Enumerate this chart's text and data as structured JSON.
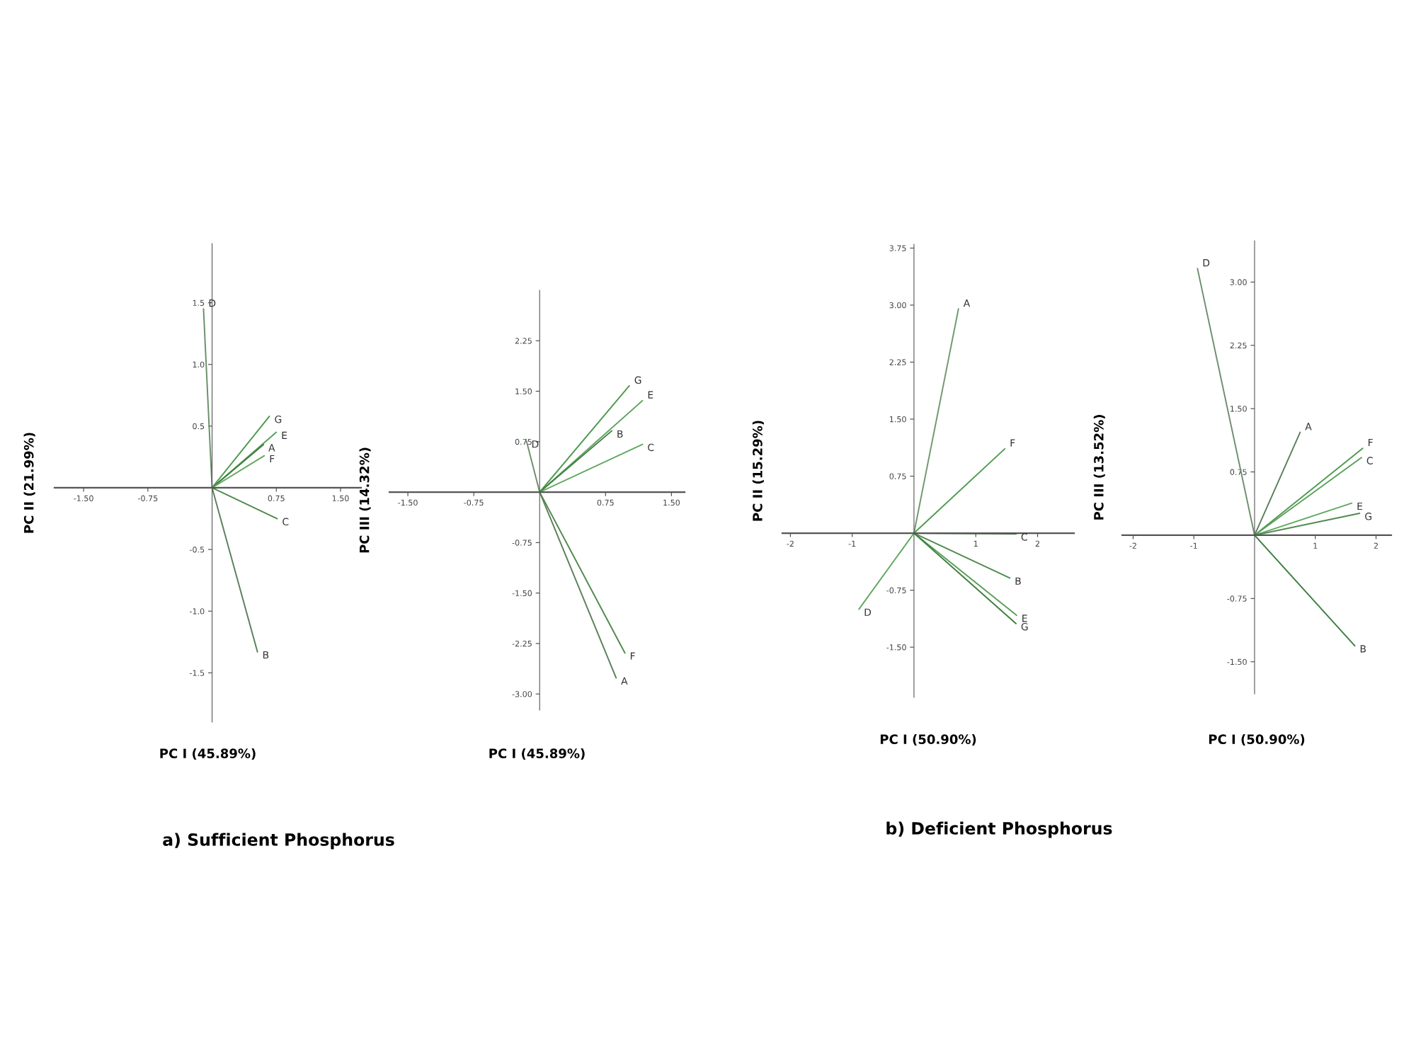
{
  "chart_data": [
    {
      "type": "line",
      "xlabel": "PC I (45.89%)",
      "ylabel": "PC II (21.99%)",
      "annotations": [
        "a) Sufficient Phosphorus"
      ],
      "marker": "none",
      "line_style": "solid",
      "grid": false,
      "legend": false,
      "xlim": [
        -1.84,
        1.74
      ],
      "ylim": [
        -1.9,
        1.98
      ],
      "xticks": [
        {
          "value": -1.5,
          "label": "-1.50"
        },
        {
          "value": -0.75,
          "label": "-0.75"
        },
        {
          "value": 0.75,
          "label": "0.75"
        },
        {
          "value": 1.5,
          "label": "1.50"
        }
      ],
      "yticks": [
        {
          "value": 0.5,
          "label": "0.5"
        },
        {
          "value": 1.0,
          "label": "1.0"
        },
        {
          "value": 1.5,
          "label": "1.5"
        },
        {
          "value": -0.5,
          "label": "-0.5"
        },
        {
          "value": -1.0,
          "label": "-1.0"
        },
        {
          "value": -1.5,
          "label": "-1.5"
        }
      ],
      "series": [
        {
          "name": "D",
          "color": "#6a8f6a",
          "x": [
            0,
            -0.1
          ],
          "values": [
            0,
            1.45
          ]
        },
        {
          "name": "G",
          "color": "#4f9a4f",
          "x": [
            0,
            0.67
          ],
          "values": [
            0,
            0.58
          ]
        },
        {
          "name": "E",
          "color": "#5a9e5a",
          "x": [
            0,
            0.75
          ],
          "values": [
            0,
            0.45
          ]
        },
        {
          "name": "A",
          "color": "#3f7f3f",
          "x": [
            0,
            0.6
          ],
          "values": [
            0,
            0.35
          ]
        },
        {
          "name": "F",
          "color": "#60a860",
          "x": [
            0,
            0.61
          ],
          "values": [
            0,
            0.26
          ]
        },
        {
          "name": "C",
          "color": "#4f8a4f",
          "x": [
            0,
            0.76
          ],
          "values": [
            0,
            -0.25
          ]
        },
        {
          "name": "B",
          "color": "#5c7f5c",
          "x": [
            0,
            0.53
          ],
          "values": [
            0,
            -1.33
          ]
        }
      ]
    },
    {
      "type": "line",
      "xlabel": "PC I (45.89%)",
      "ylabel": "PC III (14.32%)",
      "marker": "none",
      "line_style": "solid",
      "grid": false,
      "legend": false,
      "xlim": [
        -1.71,
        1.65
      ],
      "ylim": [
        -3.24,
        3.0
      ],
      "xticks": [
        {
          "value": -1.5,
          "label": "-1.50"
        },
        {
          "value": -0.75,
          "label": "-0.75"
        },
        {
          "value": 0.75,
          "label": "0.75"
        },
        {
          "value": 1.5,
          "label": "1.50"
        }
      ],
      "yticks": [
        2.25,
        {
          "value": 1.5,
          "label": "1.50"
        },
        0.75,
        -0.75,
        {
          "value": -1.5,
          "label": "-1.50"
        },
        -2.25,
        {
          "value": -3.0,
          "label": "-3.00"
        }
      ],
      "series": [
        {
          "name": "G",
          "color": "#4f9a4f",
          "x": [
            0,
            1.02
          ],
          "values": [
            0,
            1.58
          ]
        },
        {
          "name": "E",
          "color": "#5a9e5a",
          "x": [
            0,
            1.17
          ],
          "values": [
            0,
            1.36
          ]
        },
        {
          "name": "B",
          "color": "#3f7f3f",
          "x": [
            0,
            0.82
          ],
          "values": [
            0,
            0.91
          ]
        },
        {
          "name": "C",
          "color": "#60a860",
          "x": [
            0,
            1.17
          ],
          "values": [
            0,
            0.71
          ]
        },
        {
          "name": "D",
          "color": "#6a8f6a",
          "x": [
            0,
            -0.15
          ],
          "values": [
            0,
            0.76
          ]
        },
        {
          "name": "F",
          "color": "#4f8a4f",
          "x": [
            0,
            0.97
          ],
          "values": [
            0,
            -2.39
          ]
        },
        {
          "name": "A",
          "color": "#5c7f5c",
          "x": [
            0,
            0.87
          ],
          "values": [
            0,
            -2.76
          ]
        }
      ]
    },
    {
      "type": "line",
      "xlabel": "PC I (50.90%)",
      "ylabel": "PC II (15.29%)",
      "annotations": [
        "b) Deficient Phosphorus"
      ],
      "marker": "none",
      "line_style": "solid",
      "grid": false,
      "legend": false,
      "xlim": [
        -2.13,
        2.59
      ],
      "ylim": [
        -2.16,
        3.8
      ],
      "xticks": [
        -2,
        -1,
        1,
        2
      ],
      "yticks": [
        3.75,
        {
          "value": 3.0,
          "label": "3.00"
        },
        2.25,
        {
          "value": 1.5,
          "label": "1.50"
        },
        0.75,
        -0.75,
        {
          "value": -1.5,
          "label": "-1.50"
        }
      ],
      "series": [
        {
          "name": "A",
          "color": "#6f9a6f",
          "x": [
            0,
            0.72
          ],
          "values": [
            0,
            2.95
          ]
        },
        {
          "name": "F",
          "color": "#4f9a4f",
          "x": [
            0,
            1.47
          ],
          "values": [
            0,
            1.11
          ]
        },
        {
          "name": "C",
          "color": "#3f6f3f",
          "x": [
            0,
            1.65
          ],
          "values": [
            0,
            -0.01
          ]
        },
        {
          "name": "B",
          "color": "#4f8a4f",
          "x": [
            0,
            1.55
          ],
          "values": [
            0,
            -0.59
          ]
        },
        {
          "name": "E",
          "color": "#5a9e5a",
          "x": [
            0,
            1.66
          ],
          "values": [
            0,
            -1.08
          ]
        },
        {
          "name": "G",
          "color": "#3f7f3f",
          "x": [
            0,
            1.65
          ],
          "values": [
            0,
            -1.19
          ]
        },
        {
          "name": "D",
          "color": "#60a860",
          "x": [
            0,
            -0.89
          ],
          "values": [
            0,
            -1.0
          ]
        }
      ]
    },
    {
      "type": "line",
      "xlabel": "PC I (50.90%)",
      "ylabel": "PC III (13.52%)",
      "marker": "none",
      "line_style": "solid",
      "grid": false,
      "legend": false,
      "xlim": [
        -2.18,
        2.25
      ],
      "ylim": [
        -1.88,
        3.49
      ],
      "xticks": [
        -2,
        -1,
        1,
        2
      ],
      "yticks": [
        {
          "value": 3.0,
          "label": "3.00"
        },
        2.25,
        {
          "value": 1.5,
          "label": "1.50"
        },
        0.75,
        -0.75,
        {
          "value": -1.5,
          "label": "-1.50"
        }
      ],
      "series": [
        {
          "name": "D",
          "color": "#6f8f6f",
          "x": [
            0,
            -0.94
          ],
          "values": [
            0,
            3.16
          ]
        },
        {
          "name": "A",
          "color": "#5c7f5c",
          "x": [
            0,
            0.75
          ],
          "values": [
            0,
            1.22
          ]
        },
        {
          "name": "F",
          "color": "#4f9a4f",
          "x": [
            0,
            1.78
          ],
          "values": [
            0,
            1.03
          ]
        },
        {
          "name": "C",
          "color": "#5a9e5a",
          "x": [
            0,
            1.76
          ],
          "values": [
            0,
            0.92
          ]
        },
        {
          "name": "E",
          "color": "#60a860",
          "x": [
            0,
            1.6
          ],
          "values": [
            0,
            0.38
          ]
        },
        {
          "name": "G",
          "color": "#4f8a4f",
          "x": [
            0,
            1.73
          ],
          "values": [
            0,
            0.26
          ]
        },
        {
          "name": "B",
          "color": "#3f7f3f",
          "x": [
            0,
            1.65
          ],
          "values": [
            0,
            -1.31
          ]
        }
      ]
    }
  ]
}
